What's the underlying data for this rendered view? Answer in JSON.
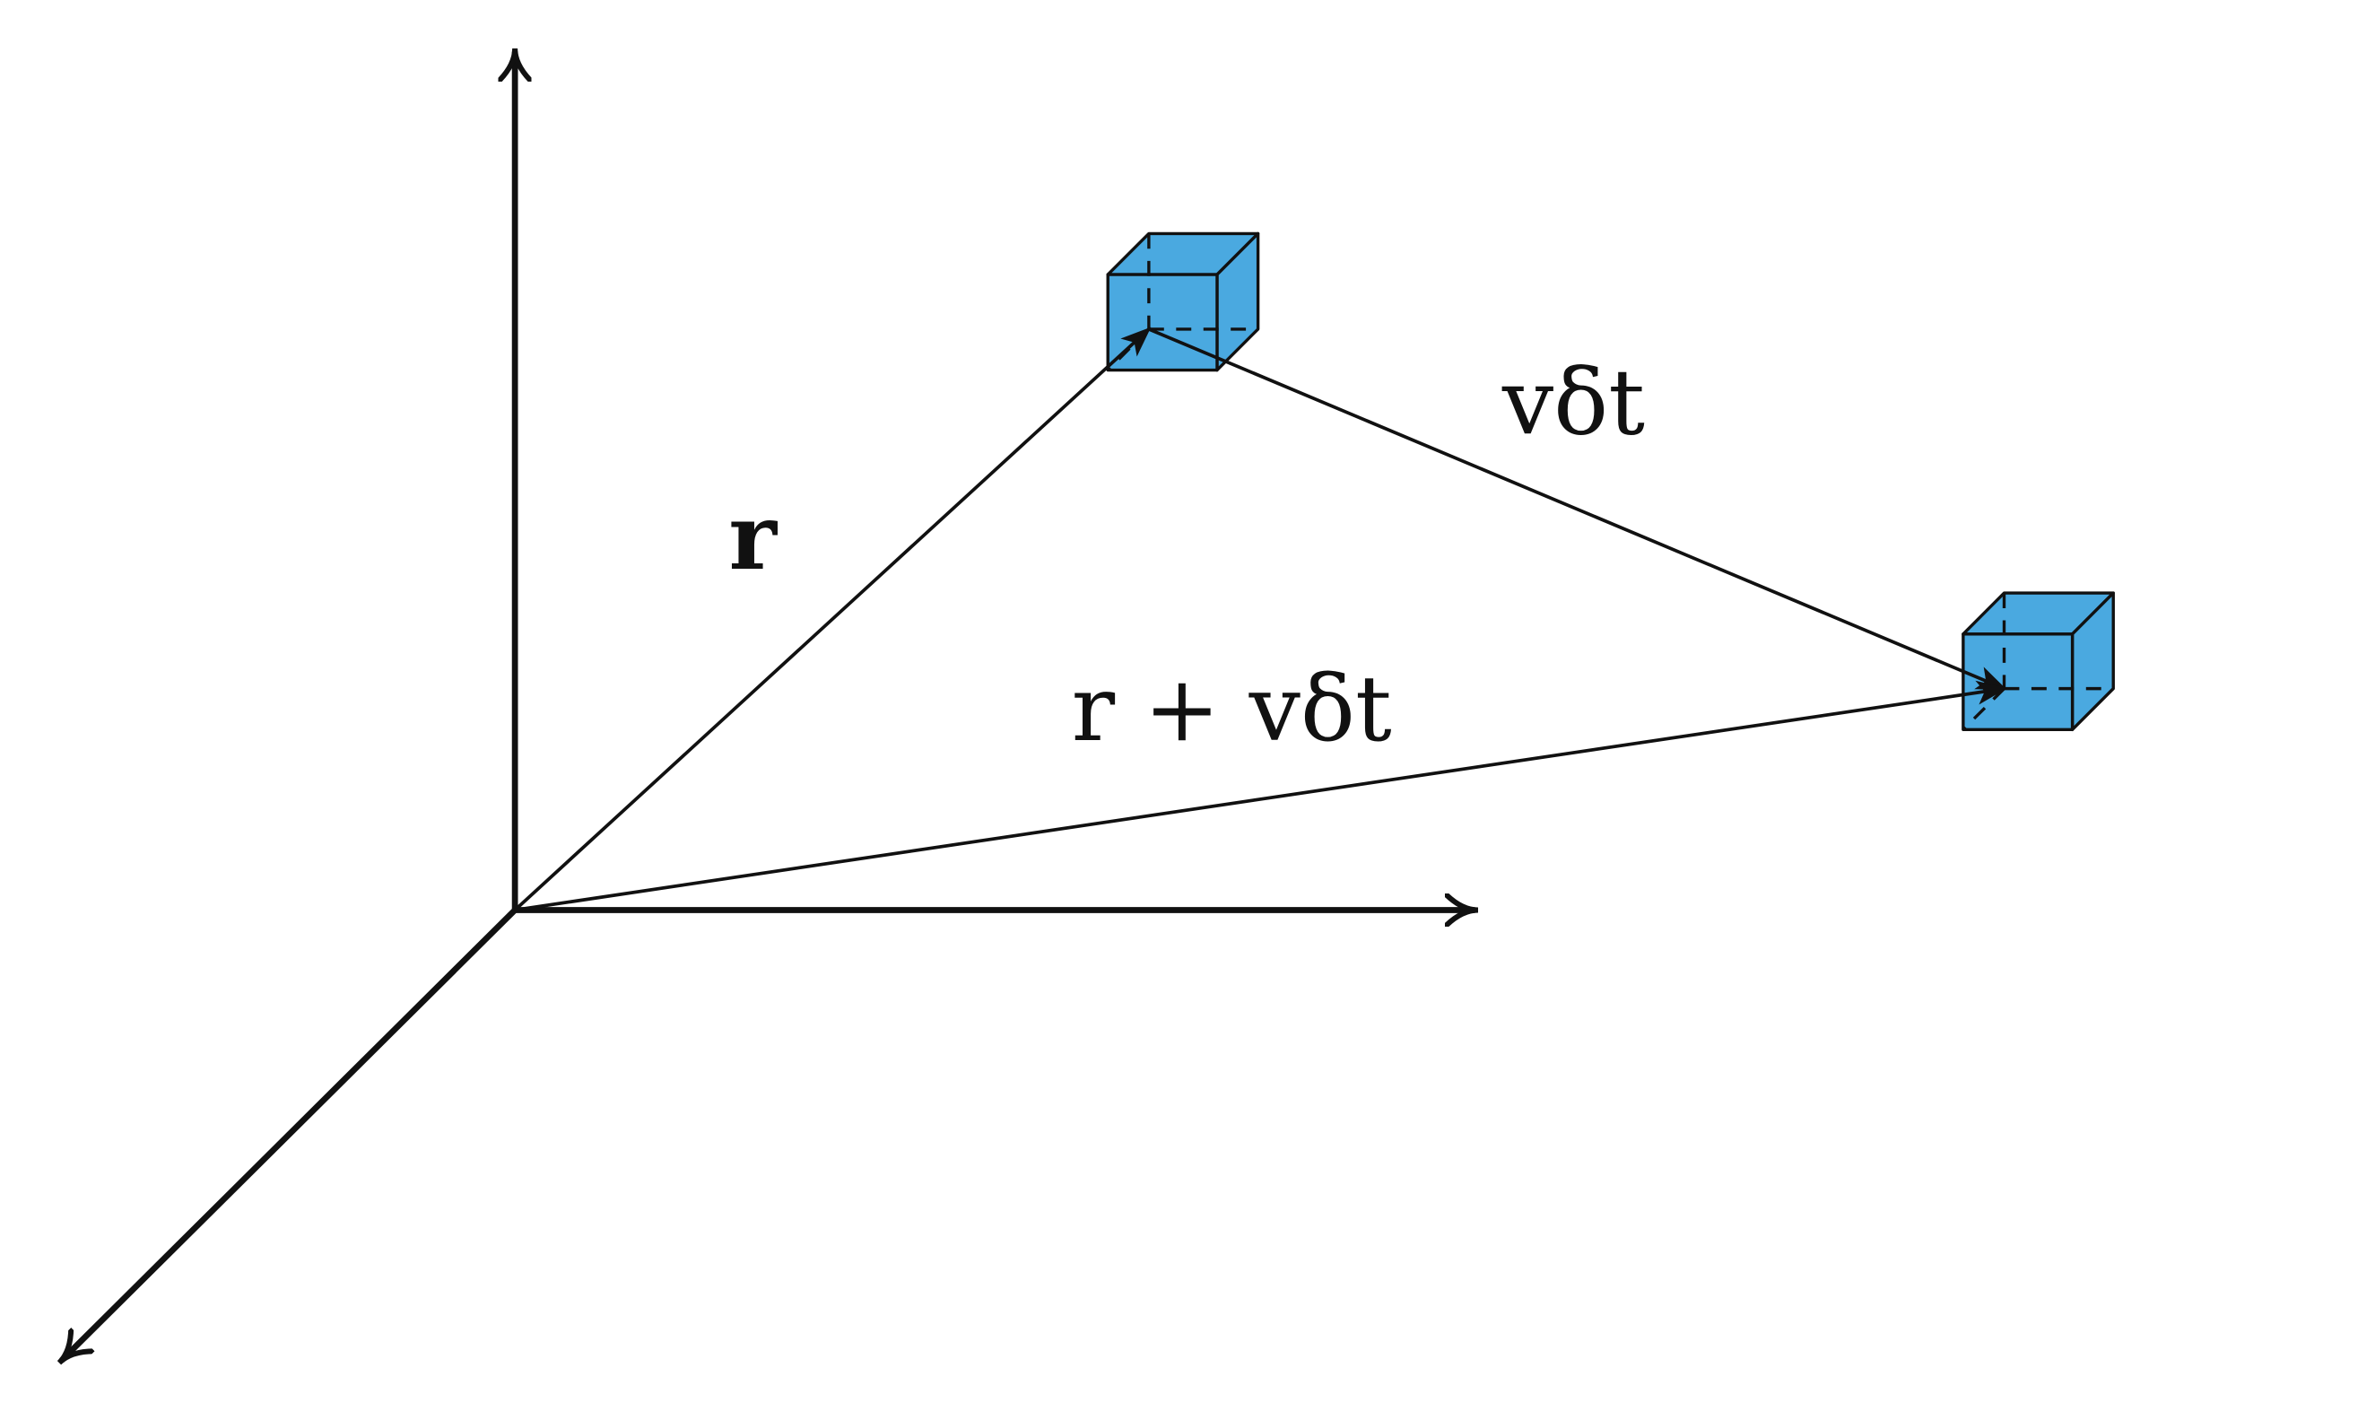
{
  "diagram": {
    "labels": {
      "r": "r",
      "v_dt": "vδt",
      "r_plus_v_dt": "r + vδt"
    },
    "colors": {
      "cube_fill": "#4aa9e0",
      "stroke": "#111111",
      "background": "#ffffff"
    },
    "icons": {
      "cube_initial": "cube-icon",
      "cube_final": "cube-icon"
    }
  }
}
